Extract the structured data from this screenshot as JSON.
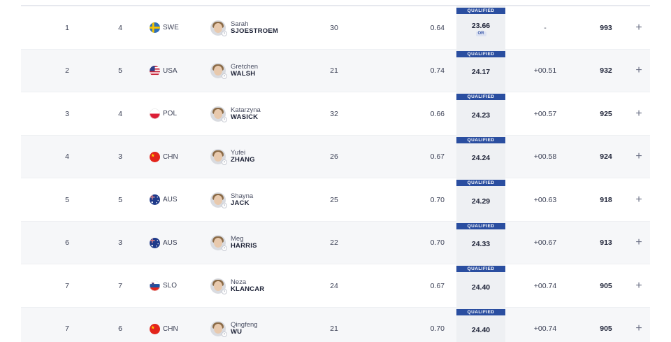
{
  "colors": {
    "qualified_badge": "#2a4ea0",
    "row_alt": "#f6f7f9",
    "time_column_bg": "#eef0f3"
  },
  "rows": [
    {
      "rank": "1",
      "lane": "4",
      "noc": "SWE",
      "flag": "sweden-flag-icon",
      "given_name": "Sarah",
      "family_name": "SJOESTROEM",
      "age": "30",
      "reaction": "0.64",
      "status": "QUALIFIED",
      "time": "23.66",
      "record": "OR",
      "behind": "-",
      "points": "993"
    },
    {
      "rank": "2",
      "lane": "5",
      "noc": "USA",
      "flag": "usa-flag-icon",
      "given_name": "Gretchen",
      "family_name": "WALSH",
      "age": "21",
      "reaction": "0.74",
      "status": "QUALIFIED",
      "time": "24.17",
      "record": "",
      "behind": "+00.51",
      "points": "932"
    },
    {
      "rank": "3",
      "lane": "4",
      "noc": "POL",
      "flag": "poland-flag-icon",
      "given_name": "Katarzyna",
      "family_name": "WASICK",
      "age": "32",
      "reaction": "0.66",
      "status": "QUALIFIED",
      "time": "24.23",
      "record": "",
      "behind": "+00.57",
      "points": "925"
    },
    {
      "rank": "4",
      "lane": "3",
      "noc": "CHN",
      "flag": "china-flag-icon",
      "given_name": "Yufei",
      "family_name": "ZHANG",
      "age": "26",
      "reaction": "0.67",
      "status": "QUALIFIED",
      "time": "24.24",
      "record": "",
      "behind": "+00.58",
      "points": "924"
    },
    {
      "rank": "5",
      "lane": "5",
      "noc": "AUS",
      "flag": "australia-flag-icon",
      "given_name": "Shayna",
      "family_name": "JACK",
      "age": "25",
      "reaction": "0.70",
      "status": "QUALIFIED",
      "time": "24.29",
      "record": "",
      "behind": "+00.63",
      "points": "918"
    },
    {
      "rank": "6",
      "lane": "3",
      "noc": "AUS",
      "flag": "australia-flag-icon",
      "given_name": "Meg",
      "family_name": "HARRIS",
      "age": "22",
      "reaction": "0.70",
      "status": "QUALIFIED",
      "time": "24.33",
      "record": "",
      "behind": "+00.67",
      "points": "913"
    },
    {
      "rank": "7",
      "lane": "7",
      "noc": "SLO",
      "flag": "slovenia-flag-icon",
      "given_name": "Neza",
      "family_name": "KLANCAR",
      "age": "24",
      "reaction": "0.67",
      "status": "QUALIFIED",
      "time": "24.40",
      "record": "",
      "behind": "+00.74",
      "points": "905"
    },
    {
      "rank": "7",
      "lane": "6",
      "noc": "CHN",
      "flag": "china-flag-icon",
      "given_name": "Qingfeng",
      "family_name": "WU",
      "age": "21",
      "reaction": "0.70",
      "status": "QUALIFIED",
      "time": "24.40",
      "record": "",
      "behind": "+00.74",
      "points": "905"
    }
  ],
  "expand_symbol": "+"
}
